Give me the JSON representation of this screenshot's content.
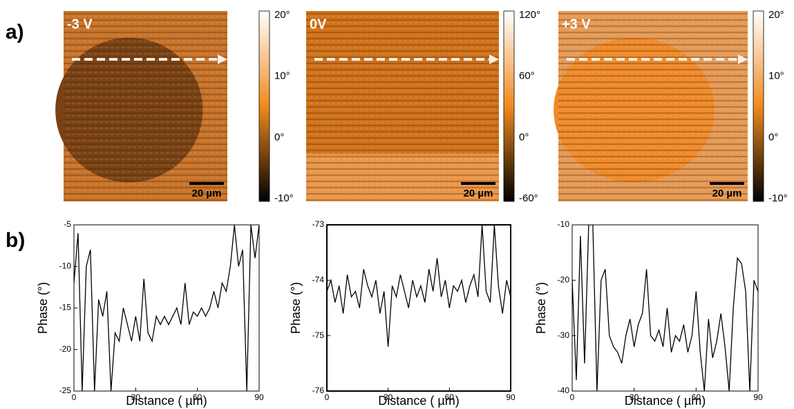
{
  "panel_labels": [
    "a)",
    "b)"
  ],
  "images": [
    {
      "label": "-3 V",
      "scale_bar": "20 µm",
      "colorbar_ticks": [
        "20°",
        "10°",
        "0°",
        "-10°"
      ]
    },
    {
      "label": "0V",
      "scale_bar": "20 µm",
      "colorbar_ticks": [
        "120°",
        "60°",
        "0°",
        "-60°"
      ]
    },
    {
      "label": "+3 V",
      "scale_bar": "20 µm",
      "colorbar_ticks": [
        "20°",
        "10°",
        "0°",
        "-10°"
      ]
    }
  ],
  "chart_data": [
    {
      "type": "line",
      "xlabel": "Distance ( µm)",
      "ylabel": "Phase (°)",
      "color": "#000000",
      "x": [
        0,
        2,
        4,
        6,
        8,
        10,
        12,
        14,
        16,
        18,
        20,
        22,
        24,
        26,
        28,
        30,
        32,
        34,
        36,
        38,
        40,
        42,
        44,
        46,
        48,
        50,
        52,
        54,
        56,
        58,
        60,
        62,
        64,
        66,
        68,
        70,
        72,
        74,
        76,
        78,
        80,
        82,
        84,
        86,
        88,
        90
      ],
      "values": [
        -12,
        -6,
        -25,
        -10,
        -8,
        -25,
        -14,
        -16,
        -13,
        -25,
        -18,
        -19,
        -15,
        -17,
        -19,
        -16,
        -19,
        -11.5,
        -18,
        -19,
        -16,
        -17,
        -16,
        -17,
        -16,
        -15,
        -17,
        -12,
        -17,
        -15.5,
        -16,
        -15,
        -16,
        -15,
        -13,
        -15,
        -12,
        -13,
        -10,
        -5,
        -10,
        -8,
        -25,
        -5,
        -9,
        -5
      ],
      "xlim": [
        0,
        90
      ],
      "ylim": [
        -25,
        -5
      ],
      "xticks": [
        0,
        30,
        60,
        90
      ],
      "yticks": [
        -25,
        -20,
        -15,
        -10,
        -5
      ]
    },
    {
      "type": "line",
      "xlabel": "Distance ( µm)",
      "ylabel": "Phase (°)",
      "color": "#000000",
      "x": [
        0,
        2,
        4,
        6,
        8,
        10,
        12,
        14,
        16,
        18,
        20,
        22,
        24,
        26,
        28,
        30,
        32,
        34,
        36,
        38,
        40,
        42,
        44,
        46,
        48,
        50,
        52,
        54,
        56,
        58,
        60,
        62,
        64,
        66,
        68,
        70,
        72,
        74,
        76,
        78,
        80,
        82,
        84,
        86,
        88,
        90
      ],
      "values": [
        -74.2,
        -74.0,
        -74.4,
        -74.1,
        -74.6,
        -73.9,
        -74.3,
        -74.2,
        -74.5,
        -73.8,
        -74.1,
        -74.3,
        -74.0,
        -74.6,
        -74.2,
        -75.2,
        -74.1,
        -74.3,
        -73.9,
        -74.2,
        -74.5,
        -74.0,
        -74.3,
        -74.1,
        -74.4,
        -73.8,
        -74.2,
        -73.6,
        -74.3,
        -74.0,
        -74.5,
        -74.1,
        -74.2,
        -74.0,
        -74.4,
        -74.1,
        -73.9,
        -74.3,
        -73.0,
        -74.2,
        -74.4,
        -73.0,
        -74.1,
        -74.6,
        -74.0,
        -74.3
      ],
      "xlim": [
        0,
        90
      ],
      "ylim": [
        -76,
        -73
      ],
      "xticks": [
        0,
        30,
        60,
        90
      ],
      "yticks": [
        -76,
        -75,
        -74,
        -73
      ]
    },
    {
      "type": "line",
      "xlabel": "Distance ( µm)",
      "ylabel": "Phase (°)",
      "color": "#000000",
      "x": [
        0,
        2,
        4,
        6,
        8,
        10,
        12,
        14,
        16,
        18,
        20,
        22,
        24,
        26,
        28,
        30,
        32,
        34,
        36,
        38,
        40,
        42,
        44,
        46,
        48,
        50,
        52,
        54,
        56,
        58,
        60,
        62,
        64,
        66,
        68,
        70,
        72,
        74,
        76,
        78,
        80,
        82,
        84,
        86,
        88,
        90
      ],
      "values": [
        -20,
        -38,
        -12,
        -35,
        -10,
        -10,
        -40,
        -20,
        -18,
        -30,
        -32,
        -33,
        -35,
        -30,
        -27,
        -32,
        -28,
        -26,
        -18,
        -30,
        -31,
        -29,
        -32,
        -25,
        -33,
        -30,
        -31,
        -28,
        -33,
        -30,
        -22,
        -33,
        -40,
        -27,
        -34,
        -31,
        -26,
        -32,
        -40,
        -25,
        -16,
        -17,
        -22,
        -40,
        -20,
        -22
      ],
      "xlim": [
        0,
        90
      ],
      "ylim": [
        -40,
        -10
      ],
      "xticks": [
        0,
        30,
        60,
        90
      ],
      "yticks": [
        -40,
        -30,
        -20,
        -10
      ]
    }
  ]
}
